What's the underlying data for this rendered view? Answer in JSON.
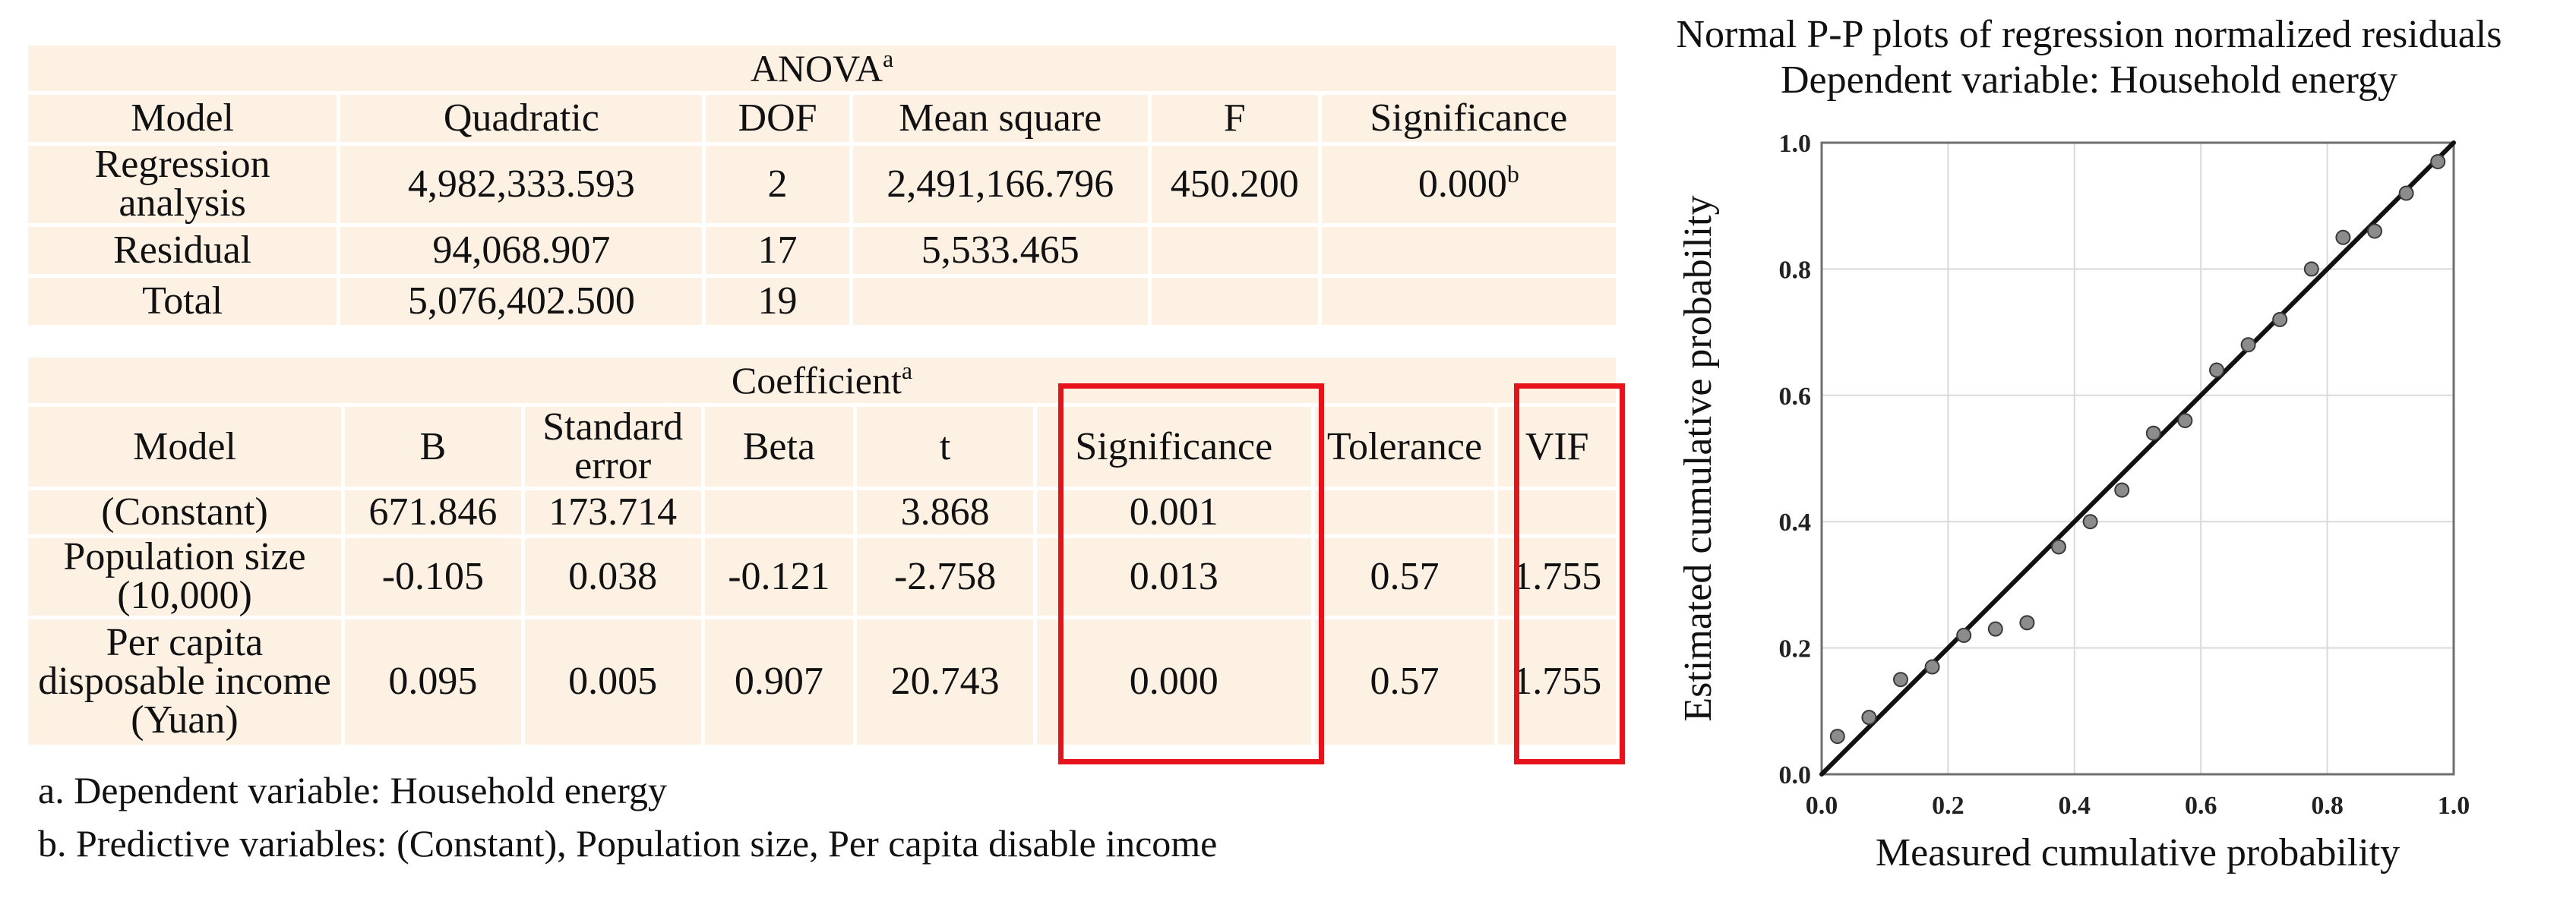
{
  "anova": {
    "title": "ANOVA",
    "title_sup": "a",
    "headers": [
      "Model",
      "Quadratic",
      "DOF",
      "Mean square",
      "F",
      "Significance"
    ],
    "rows": [
      {
        "model": "Regression analysis",
        "quadratic": "4,982,333.593",
        "dof": "2",
        "mean_square": "2,491,166.796",
        "f": "450.200",
        "significance": "0.000",
        "significance_sup": "b"
      },
      {
        "model": "Residual",
        "quadratic": "94,068.907",
        "dof": "17",
        "mean_square": "5,533.465",
        "f": "",
        "significance": ""
      },
      {
        "model": "Total",
        "quadratic": "5,076,402.500",
        "dof": "19",
        "mean_square": "",
        "f": "",
        "significance": ""
      }
    ]
  },
  "coefficient": {
    "title": "Coefficient",
    "title_sup": "a",
    "headers": [
      "Model",
      "B",
      "Standard error",
      "Beta",
      "t",
      "Significance",
      "Tolerance",
      "VIF"
    ],
    "rows": [
      {
        "model": "(Constant)",
        "b": "671.846",
        "se": "173.714",
        "beta": "",
        "t": "3.868",
        "significance": "0.001",
        "tolerance": "",
        "vif": ""
      },
      {
        "model": "Population size (10,000)",
        "b": "-0.105",
        "se": "0.038",
        "beta": "-0.121",
        "t": "-2.758",
        "significance": "0.013",
        "tolerance": "0.57",
        "vif": "1.755"
      },
      {
        "model": "Per capita disposable income (Yuan)",
        "b": "0.095",
        "se": "0.005",
        "beta": "0.907",
        "t": "20.743",
        "significance": "0.000",
        "tolerance": "0.57",
        "vif": "1.755"
      }
    ]
  },
  "notes": {
    "a": "a. Dependent variable: Household energy",
    "b": "b. Predictive variables: (Constant), Population size, Per capita disable income"
  },
  "highlight_color": "#e8131a",
  "table_bg": "#fdf1e4",
  "plot": {
    "title_line1": "Normal P-P plots of regression normalized residuals",
    "title_line2": "Dependent variable: Household energy"
  },
  "chart_data": {
    "type": "scatter",
    "title": "Normal P-P plots of regression normalized residuals",
    "subtitle": "Dependent variable: Household energy",
    "xlabel": "Measured cumulative probability",
    "ylabel": "Estimated cumulative probability",
    "xlim": [
      0,
      1
    ],
    "ylim": [
      0,
      1
    ],
    "xticks": [
      "0.0",
      "0.2",
      "0.4",
      "0.6",
      "0.8",
      "1.0"
    ],
    "yticks": [
      "0.0",
      "0.2",
      "0.4",
      "0.6",
      "0.8",
      "1.0"
    ],
    "grid": true,
    "reference_line": [
      [
        0,
        0
      ],
      [
        1,
        1
      ]
    ],
    "points": [
      {
        "x": 0.025,
        "y": 0.06
      },
      {
        "x": 0.075,
        "y": 0.09
      },
      {
        "x": 0.125,
        "y": 0.15
      },
      {
        "x": 0.175,
        "y": 0.17
      },
      {
        "x": 0.225,
        "y": 0.22
      },
      {
        "x": 0.275,
        "y": 0.23
      },
      {
        "x": 0.325,
        "y": 0.24
      },
      {
        "x": 0.375,
        "y": 0.36
      },
      {
        "x": 0.425,
        "y": 0.4
      },
      {
        "x": 0.475,
        "y": 0.45
      },
      {
        "x": 0.525,
        "y": 0.54
      },
      {
        "x": 0.575,
        "y": 0.56
      },
      {
        "x": 0.625,
        "y": 0.64
      },
      {
        "x": 0.675,
        "y": 0.68
      },
      {
        "x": 0.725,
        "y": 0.72
      },
      {
        "x": 0.775,
        "y": 0.8
      },
      {
        "x": 0.825,
        "y": 0.85
      },
      {
        "x": 0.875,
        "y": 0.86
      },
      {
        "x": 0.925,
        "y": 0.92
      },
      {
        "x": 0.975,
        "y": 0.97
      }
    ]
  }
}
